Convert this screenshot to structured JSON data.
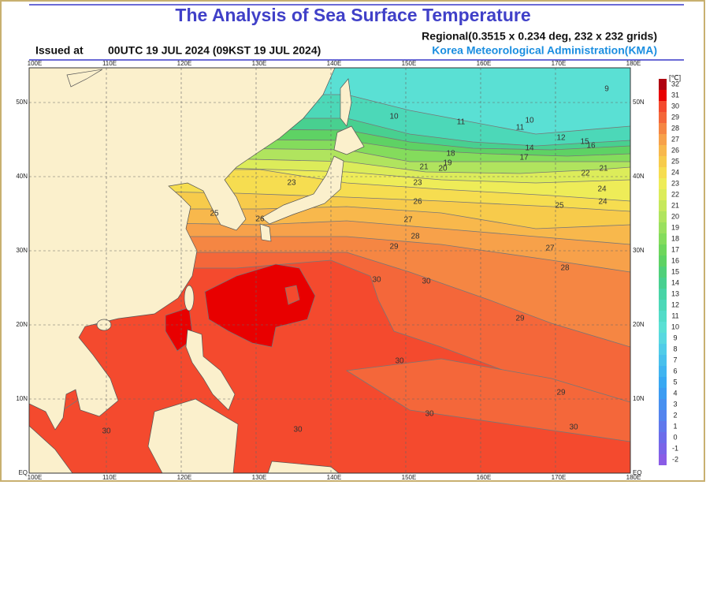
{
  "header": {
    "title": "The Analysis of Sea Surface Temperature",
    "grid_info": "Regional(0.3515 x 0.234 deg, 232 x 232 grids)",
    "issued_label": "Issued at",
    "issued_time": "00UTC 19 JUL 2024 (09KST 19 JUL 2024)",
    "agency": "Korea Meteorological Administration(KMA)"
  },
  "map": {
    "longitudes": [
      "100E",
      "110E",
      "120E",
      "130E",
      "140E",
      "150E",
      "160E",
      "170E",
      "180E"
    ],
    "latitudes": [
      "EQ",
      "10N",
      "20N",
      "30N",
      "40N",
      "50N"
    ],
    "contour_labels": [
      "9",
      "10",
      "11",
      "10",
      "11",
      "12",
      "14",
      "15",
      "16",
      "17",
      "18",
      "19",
      "20",
      "21",
      "21",
      "22",
      "23",
      "24",
      "23",
      "24",
      "25",
      "25",
      "26",
      "26",
      "27",
      "27",
      "28",
      "28",
      "29",
      "29",
      "30",
      "30",
      "30",
      "30",
      "29",
      "30",
      "30",
      "30"
    ]
  },
  "colorbar": {
    "unit": "[℃]",
    "levels": [
      {
        "value": 32,
        "color": "#b00010"
      },
      {
        "value": 31,
        "color": "#e80000"
      },
      {
        "value": 30,
        "color": "#f44a2e"
      },
      {
        "value": 29,
        "color": "#f4673a"
      },
      {
        "value": 28,
        "color": "#f58643"
      },
      {
        "value": 27,
        "color": "#f7a14a"
      },
      {
        "value": 26,
        "color": "#f8b84c"
      },
      {
        "value": 25,
        "color": "#f7cb4b"
      },
      {
        "value": 24,
        "color": "#f6dd50"
      },
      {
        "value": 23,
        "color": "#eeec58"
      },
      {
        "value": 22,
        "color": "#dcec5a"
      },
      {
        "value": 21,
        "color": "#c6e85c"
      },
      {
        "value": 20,
        "color": "#b0e45e"
      },
      {
        "value": 19,
        "color": "#9ae05e"
      },
      {
        "value": 18,
        "color": "#84dc5c"
      },
      {
        "value": 17,
        "color": "#6ed65c"
      },
      {
        "value": 16,
        "color": "#5ed264"
      },
      {
        "value": 15,
        "color": "#50d07a"
      },
      {
        "value": 14,
        "color": "#48d090"
      },
      {
        "value": 13,
        "color": "#48d4a6"
      },
      {
        "value": 12,
        "color": "#4cd8b8"
      },
      {
        "value": 11,
        "color": "#52dcc8"
      },
      {
        "value": 10,
        "color": "#5ae0d4"
      },
      {
        "value": 9,
        "color": "#58d8e0"
      },
      {
        "value": 8,
        "color": "#50cce8"
      },
      {
        "value": 7,
        "color": "#48c0ec"
      },
      {
        "value": 6,
        "color": "#40b4f0"
      },
      {
        "value": 5,
        "color": "#38a8f2"
      },
      {
        "value": 4,
        "color": "#3c9cf2"
      },
      {
        "value": 3,
        "color": "#4890f0"
      },
      {
        "value": 2,
        "color": "#5484ee"
      },
      {
        "value": 1,
        "color": "#6078ec"
      },
      {
        "value": 0,
        "color": "#6c6cea"
      },
      {
        "value": -1,
        "color": "#7a64e8"
      },
      {
        "value": -2,
        "color": "#8a5ce6"
      }
    ]
  }
}
